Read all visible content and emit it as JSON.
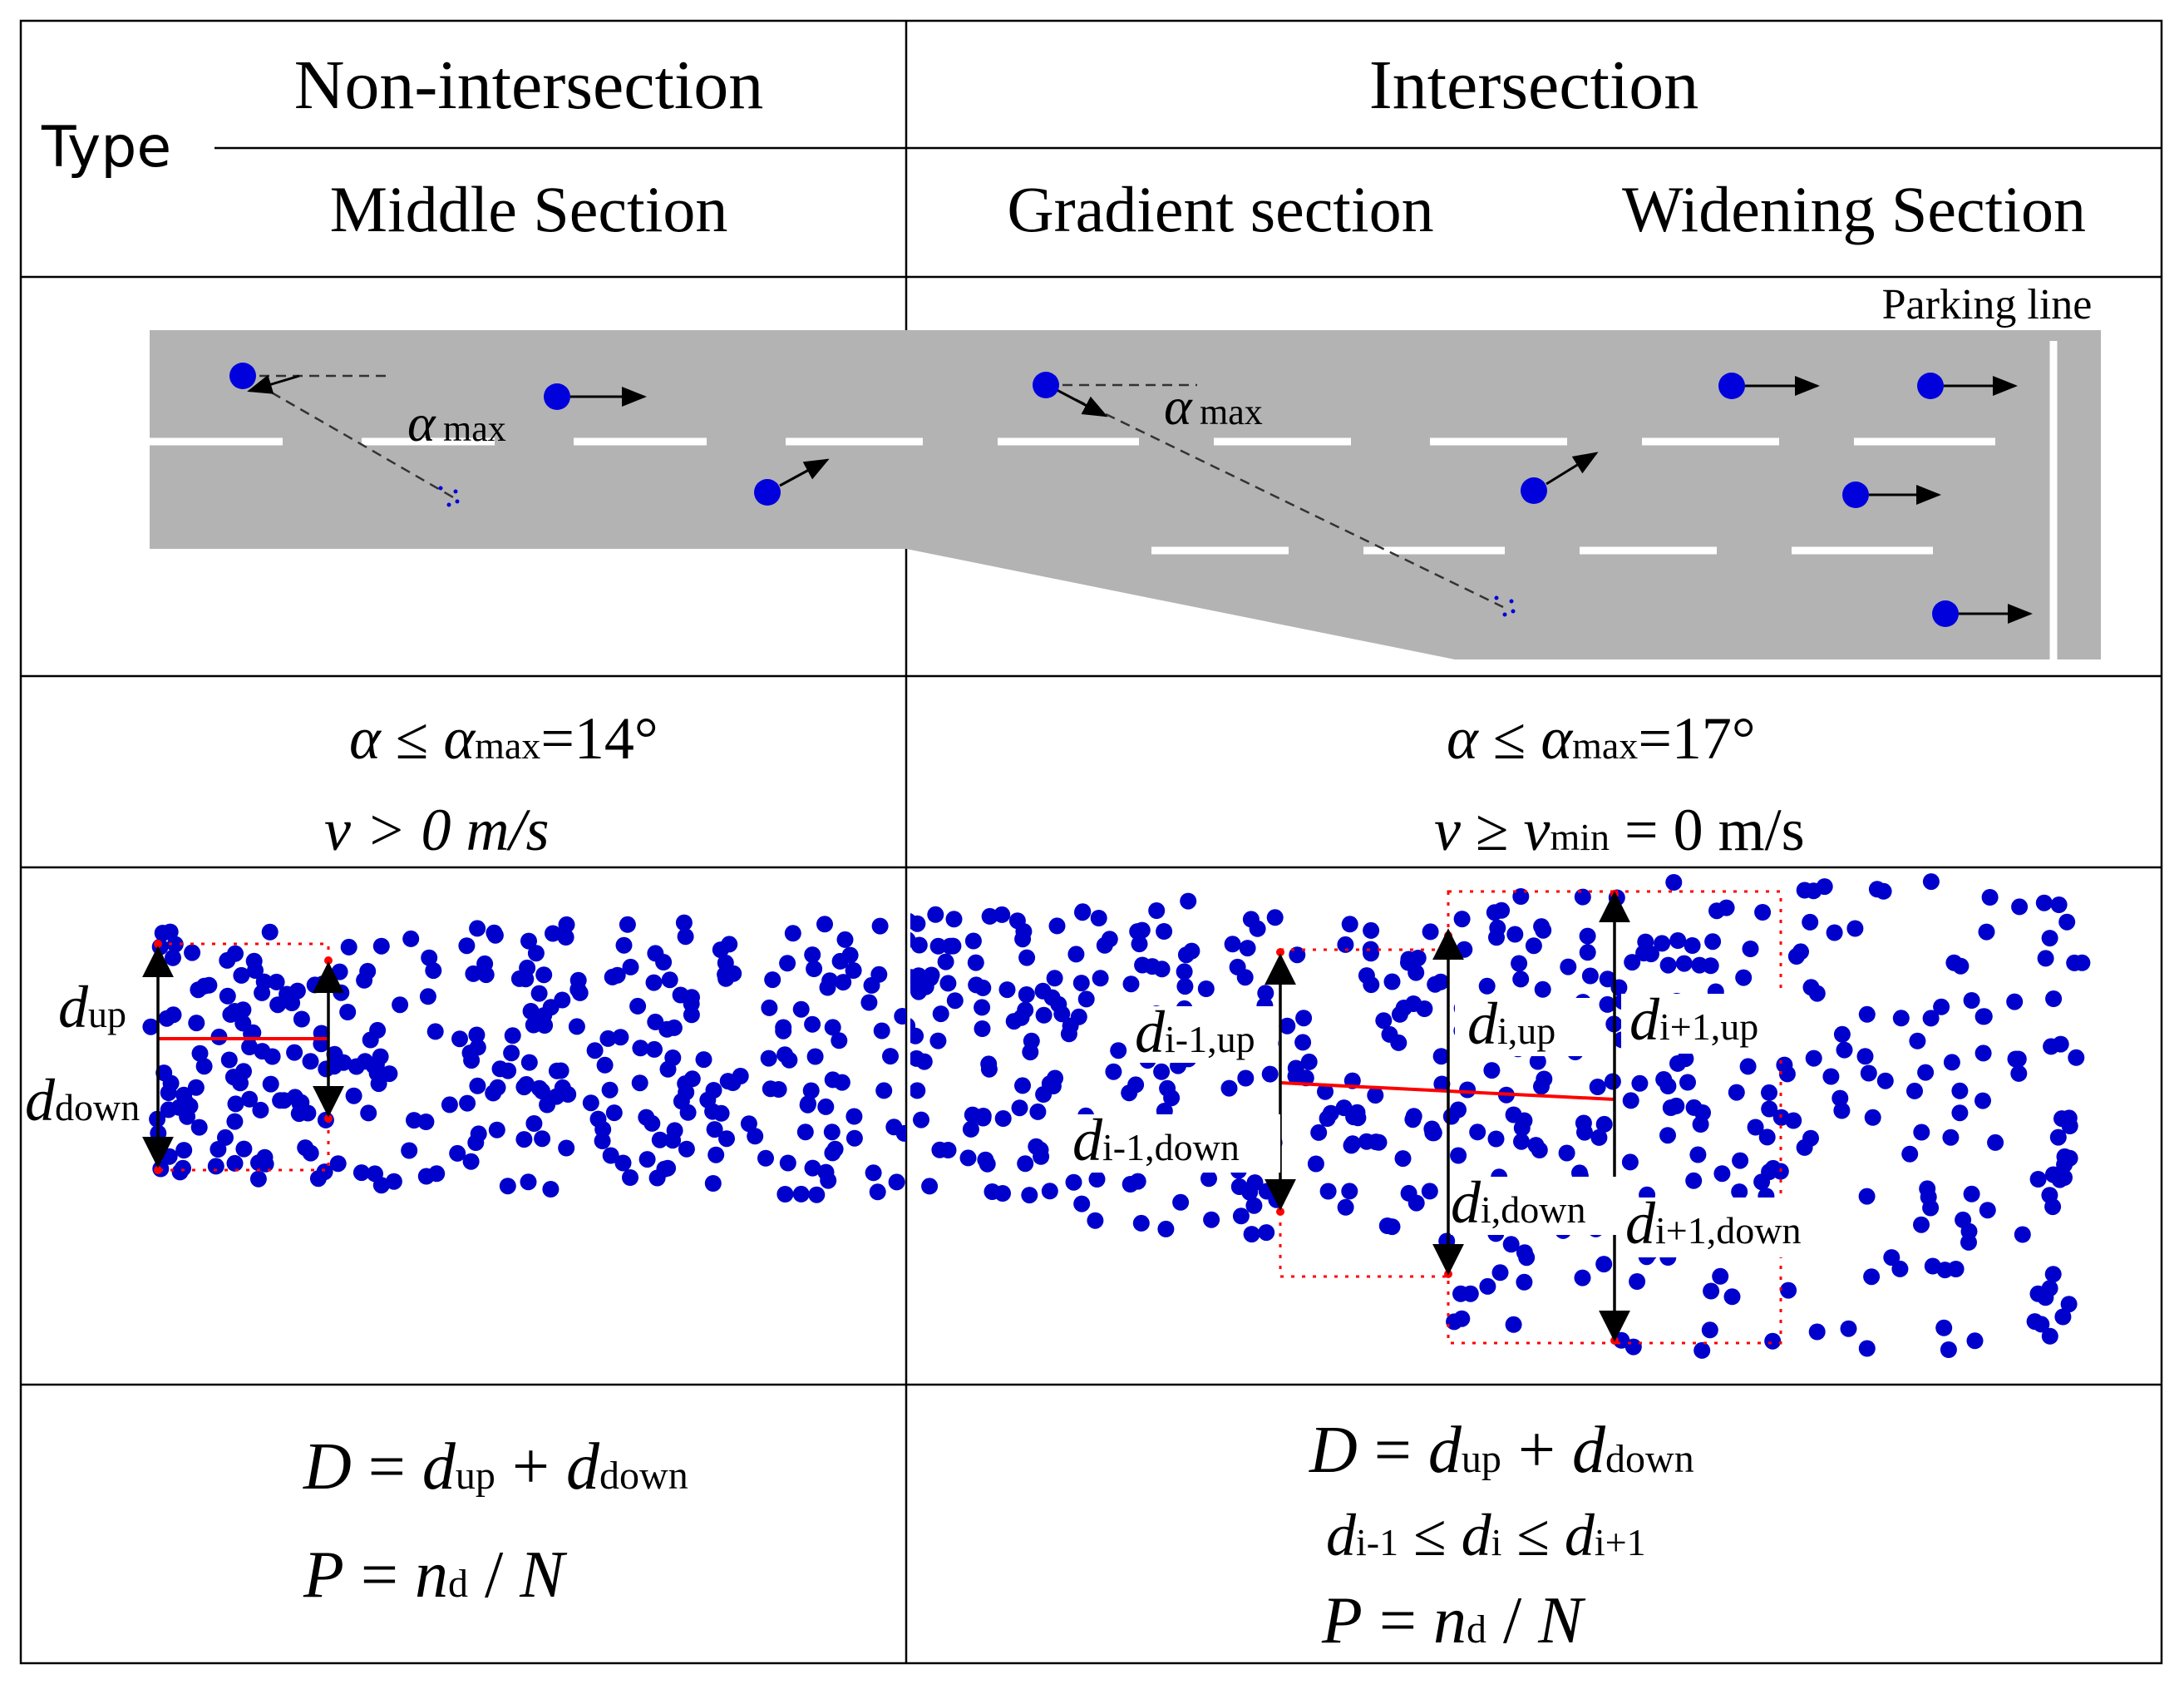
{
  "table": {
    "type_label": "Type",
    "header_left": "Non-intersection",
    "header_right": "Intersection",
    "sub_middle": "Middle Section",
    "sub_gradient": "Gradient section",
    "sub_widening": "Widening Section"
  },
  "road": {
    "parking_line_label": "Parking line",
    "alpha_symbol": "α",
    "max_sub": "max",
    "colors": {
      "road": "#b3b3b3",
      "vehicle": "#0000dd",
      "lane_mark": "#ffffff",
      "guide": "#333333"
    }
  },
  "conditions": {
    "left": {
      "alpha": "α",
      "leq": " ≤ ",
      "alpha_max": "α",
      "max_sub": "max",
      "value": "=14°",
      "v_line": "v > 0 m/s"
    },
    "right": {
      "alpha": "α",
      "leq": " ≤ ",
      "alpha_max": "α",
      "max_sub": "max",
      "value": "=17°",
      "v": "v",
      "geq": " ≥ ",
      "v_min": "v",
      "min_sub": "min",
      "v_value": " = 0 m/s"
    }
  },
  "scatter": {
    "colors": {
      "dot": "#0000cc",
      "boundary": "#ff0000",
      "arrow": "#000000"
    },
    "labels": {
      "d_up_main": "d",
      "d_up_sub": "up",
      "d_down_main": "d",
      "d_down_sub": "down",
      "d_im1_up_main": "d",
      "d_im1_up_sub": "i-1,up",
      "d_im1_down_main": "d",
      "d_im1_down_sub": "i-1,down",
      "d_i_up_main": "d",
      "d_i_up_sub": "i,up",
      "d_i_down_main": "d",
      "d_i_down_sub": "i,down",
      "d_ip1_up_main": "d",
      "d_ip1_up_sub": "i+1,up",
      "d_ip1_down_main": "d",
      "d_ip1_down_sub": "i+1,down"
    }
  },
  "formulas": {
    "left": {
      "f1": {
        "D": "D",
        "eq": " = ",
        "d1": "d",
        "s1": "up",
        "plus": " + ",
        "d2": "d",
        "s2": "down"
      },
      "f2": {
        "P": "P",
        "eq": " = ",
        "n": "n",
        "ns": "d",
        "slash": " / ",
        "N": "N"
      }
    },
    "right": {
      "f1": {
        "D": "D",
        "eq": " = ",
        "d1": "d",
        "s1": "up",
        "plus": " + ",
        "d2": "d",
        "s2": "down"
      },
      "f2": {
        "d1": "d",
        "s1": "i-1",
        "leq1": " ≤ ",
        "d2": "d",
        "s2": "i",
        "leq2": " ≤ ",
        "d3": "d",
        "s3": "i+1"
      },
      "f3": {
        "P": "P",
        "eq": " = ",
        "n": "n",
        "ns": "d",
        "slash": " / ",
        "N": "N"
      }
    }
  }
}
